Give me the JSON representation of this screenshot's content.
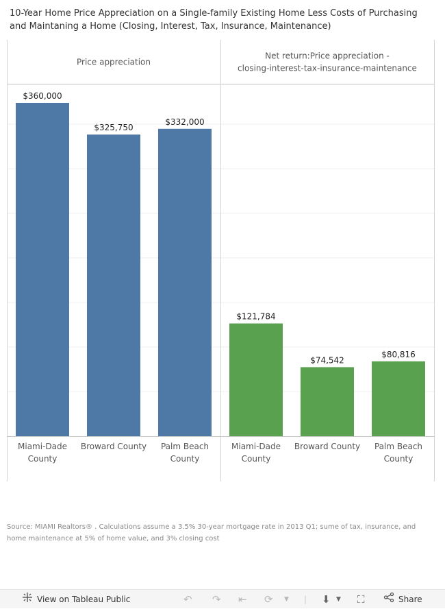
{
  "title": "10-Year Home Price Appreciation on a Single-family Existing Home Less Costs of Purchasing and Maintaning a Home (Closing, Interest, Tax, Insurance,  Maintenance)",
  "source_note": "Source: MIAMI Realtors® . Calculations assume a 3.5% 30-year mortgage rate in 2013 Q1; sume of  tax, insurance, and home maintenance  at 5% of home value,  and 3% closing cost",
  "chart_data": {
    "type": "bar",
    "ylim": [
      0,
      380000
    ],
    "grid": true,
    "panels": [
      {
        "header_lines": [
          "Price appreciation"
        ],
        "color": "#4e79a7",
        "categories": [
          [
            "Miami-Dade",
            "County"
          ],
          [
            "Broward County"
          ],
          [
            "Palm Beach",
            "County"
          ]
        ],
        "values": [
          360000,
          325750,
          332000
        ],
        "labels": [
          "$360,000",
          "$325,750",
          "$332,000"
        ]
      },
      {
        "header_lines": [
          "Net return:Price appreciation -",
          "closing-interest-tax-insurance-maintenance"
        ],
        "color": "#59a14f",
        "categories": [
          [
            "Miami-Dade",
            "County"
          ],
          [
            "Broward County"
          ],
          [
            "Palm Beach",
            "County"
          ]
        ],
        "values": [
          121784,
          74542,
          80816
        ],
        "labels": [
          "$121,784",
          "$74,542",
          "$80,816"
        ]
      }
    ]
  },
  "toolbar": {
    "view_label": "View on Tableau Public",
    "share_label": "Share",
    "icons": [
      "tableau-logo-icon",
      "undo-icon",
      "redo-icon",
      "revert-icon",
      "refresh-icon",
      "download-icon",
      "fullscreen-icon",
      "share-icon"
    ]
  }
}
